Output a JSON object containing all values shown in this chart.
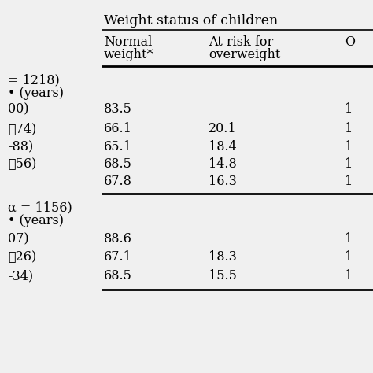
{
  "title": "Weight status of children",
  "col_headers_line1": [
    "Normal",
    "At risk for",
    "O"
  ],
  "col_headers_line2": [
    "weight*",
    "overweight",
    ""
  ],
  "section1_label1": "= 1218)",
  "section1_label2": "• (years)",
  "section1_rows": [
    [
      "00)",
      "83.5",
      "",
      "1"
    ],
    [
      "❊74)",
      "66.1",
      "20.1",
      "1"
    ],
    [
      "-88)",
      "65.1",
      "18.4",
      "1"
    ],
    [
      "❊56)",
      "68.5",
      "14.8",
      "1"
    ],
    [
      "",
      "67.8",
      "16.3",
      "1"
    ]
  ],
  "section2_label1": "α = 1156)",
  "section2_label2": "• (years)",
  "section2_rows": [
    [
      "07)",
      "88.6",
      "",
      "1"
    ],
    [
      "❊26)",
      "67.1",
      "18.3",
      "1"
    ],
    [
      "-34)",
      "68.5",
      "15.5",
      "1"
    ]
  ],
  "bg_color": "#f0f0f0",
  "table_bg": "#ffffff",
  "text_color": "#000000",
  "line_color": "#000000",
  "font_size": 11.5,
  "title_font_size": 12.5
}
